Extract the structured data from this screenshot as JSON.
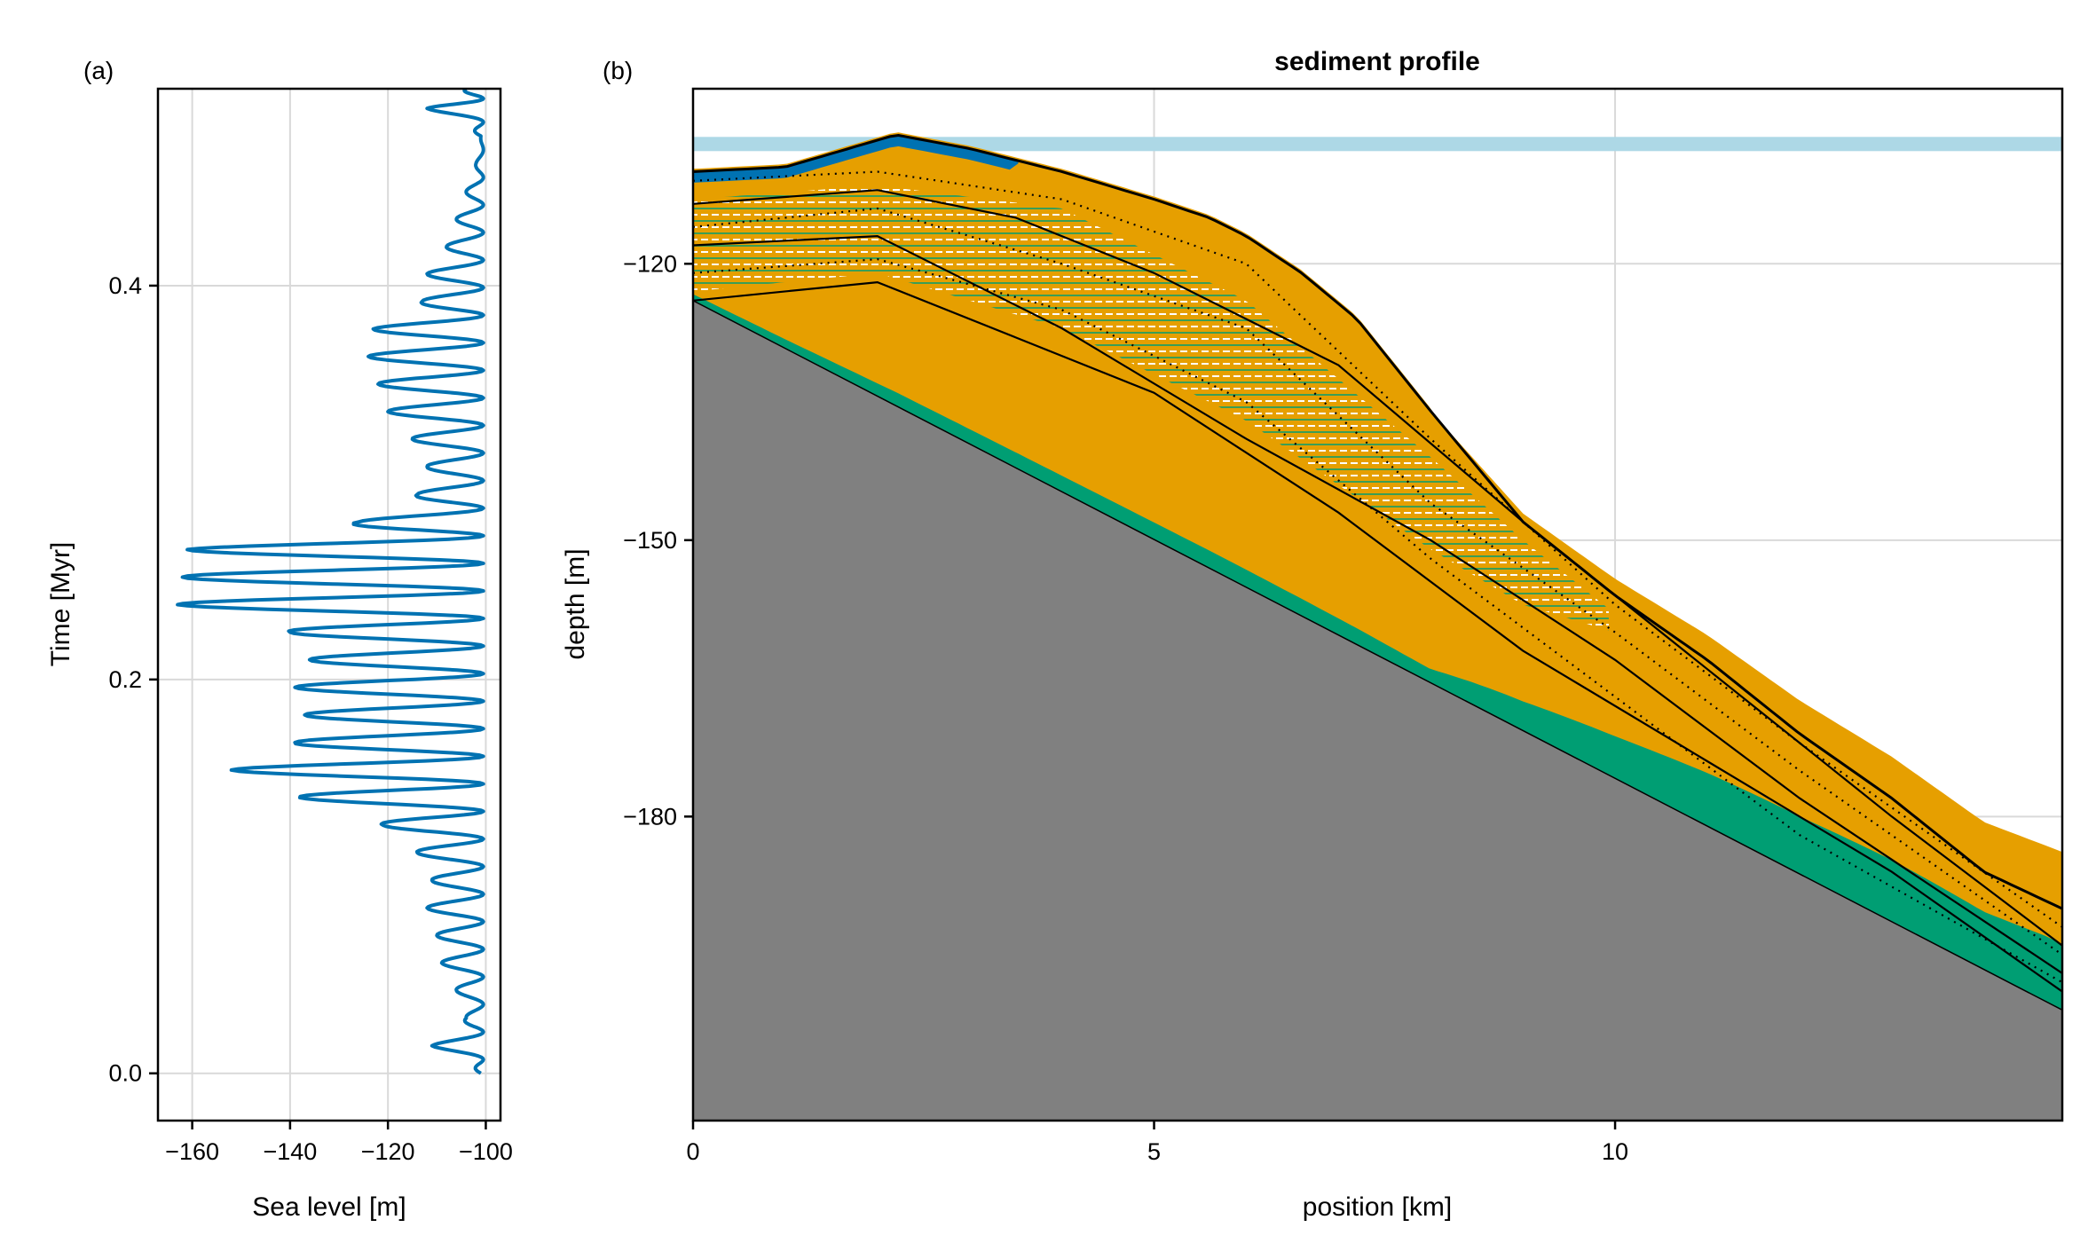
{
  "figure": {
    "panel_a_label": "(a)",
    "panel_b_label": "(b)"
  },
  "chart_data": [
    {
      "type": "line",
      "panel": "(a)",
      "title": "",
      "xlabel": "Sea level [m]",
      "ylabel": "Time [Myr]",
      "xlim": [
        -167,
        -97
      ],
      "ylim": [
        -0.024,
        0.5
      ],
      "xticks": [
        -160,
        -140,
        -120,
        -100
      ],
      "xtick_labels": [
        "−160",
        "−140",
        "−120",
        "−100"
      ],
      "yticks": [
        0.0,
        0.2,
        0.4
      ],
      "ytick_labels": [
        "0.0",
        "0.2",
        "0.4"
      ],
      "grid": true,
      "series_color": "#0072b2",
      "sea_level_minima": [
        [
          0.0,
          -101
        ],
        [
          0.014,
          -111
        ],
        [
          0.028,
          -104
        ],
        [
          0.042,
          -106
        ],
        [
          0.056,
          -109
        ],
        [
          0.07,
          -110
        ],
        [
          0.084,
          -112
        ],
        [
          0.098,
          -111
        ],
        [
          0.112,
          -114
        ],
        [
          0.126,
          -121
        ],
        [
          0.14,
          -138
        ],
        [
          0.154,
          -152
        ],
        [
          0.168,
          -139
        ],
        [
          0.182,
          -137
        ],
        [
          0.196,
          -139
        ],
        [
          0.21,
          -136
        ],
        [
          0.224,
          -140
        ],
        [
          0.238,
          -163
        ],
        [
          0.252,
          -162
        ],
        [
          0.266,
          -161
        ],
        [
          0.28,
          -126
        ],
        [
          0.294,
          -114
        ],
        [
          0.308,
          -112
        ],
        [
          0.322,
          -115
        ],
        [
          0.336,
          -120
        ],
        [
          0.35,
          -122
        ],
        [
          0.364,
          -124
        ],
        [
          0.378,
          -123
        ],
        [
          0.392,
          -113
        ],
        [
          0.406,
          -112
        ],
        [
          0.42,
          -108
        ],
        [
          0.434,
          -106
        ],
        [
          0.448,
          -104
        ],
        [
          0.462,
          -102
        ],
        [
          0.476,
          -101
        ],
        [
          0.49,
          -112
        ],
        [
          0.5,
          -104
        ]
      ]
    },
    {
      "type": "area",
      "panel": "(b)",
      "title": "sediment profile",
      "xlabel": "position [km]",
      "ylabel": "depth [m]",
      "xlim": [
        0,
        14.85
      ],
      "ylim": [
        -213,
        -101
      ],
      "xticks": [
        0,
        5,
        10
      ],
      "xtick_labels": [
        "0",
        "5",
        "10"
      ],
      "yticks": [
        -120,
        -150,
        -180
      ],
      "ytick_labels": [
        "−120",
        "−150",
        "−180"
      ],
      "grid": true,
      "sea_level_band": -107,
      "colors": {
        "basement": "#808080",
        "facies_sand": "#e69f00",
        "facies_green": "#009e73",
        "facies_blue": "#0072b2",
        "sea_band": "#add8e6"
      },
      "basement_top": [
        [
          0,
          -124
        ],
        [
          14.85,
          -201
        ]
      ],
      "surface_top": [
        [
          0,
          -110
        ],
        [
          1,
          -109.5
        ],
        [
          2.2,
          -106
        ],
        [
          3,
          -107.5
        ],
        [
          4,
          -110
        ],
        [
          5,
          -113
        ],
        [
          5.6,
          -115
        ],
        [
          6,
          -117
        ],
        [
          6.6,
          -121
        ],
        [
          7.2,
          -126
        ],
        [
          8,
          -136
        ],
        [
          9,
          -148
        ],
        [
          10,
          -156
        ],
        [
          11,
          -163
        ],
        [
          12,
          -171
        ],
        [
          13,
          -178
        ],
        [
          14,
          -186
        ],
        [
          14.85,
          -190
        ]
      ],
      "horizons_solid": [
        [
          [
            0,
            -113.5
          ],
          [
            2,
            -112
          ],
          [
            3.5,
            -115
          ],
          [
            5,
            -121
          ],
          [
            7,
            -131
          ],
          [
            9,
            -148
          ],
          [
            11,
            -164
          ],
          [
            13,
            -180
          ],
          [
            14.85,
            -194
          ]
        ],
        [
          [
            0,
            -118
          ],
          [
            2,
            -117
          ],
          [
            4,
            -127
          ],
          [
            6,
            -139
          ],
          [
            8,
            -150
          ],
          [
            10,
            -163
          ],
          [
            12,
            -178
          ],
          [
            14.85,
            -197
          ]
        ],
        [
          [
            0,
            -124
          ],
          [
            2,
            -122
          ],
          [
            3.5,
            -128
          ],
          [
            5,
            -134
          ],
          [
            7,
            -147
          ],
          [
            9,
            -162
          ],
          [
            11,
            -174
          ],
          [
            13,
            -186
          ],
          [
            14.85,
            -199
          ]
        ]
      ],
      "horizons_dotted": [
        [
          [
            0,
            -111
          ],
          [
            2,
            -110
          ],
          [
            4,
            -113
          ],
          [
            6,
            -120
          ],
          [
            8,
            -139
          ],
          [
            10,
            -157
          ],
          [
            12,
            -172
          ],
          [
            14.85,
            -192
          ]
        ],
        [
          [
            0,
            -116
          ],
          [
            2,
            -114
          ],
          [
            4,
            -120
          ],
          [
            6,
            -127
          ],
          [
            8,
            -146
          ],
          [
            10,
            -160
          ],
          [
            12,
            -175
          ],
          [
            14.85,
            -195
          ]
        ],
        [
          [
            0,
            -121
          ],
          [
            2,
            -119.5
          ],
          [
            4,
            -125
          ],
          [
            6,
            -135
          ],
          [
            8,
            -152
          ],
          [
            10,
            -167
          ],
          [
            12,
            -182
          ],
          [
            14.85,
            -198
          ]
        ]
      ]
    }
  ]
}
